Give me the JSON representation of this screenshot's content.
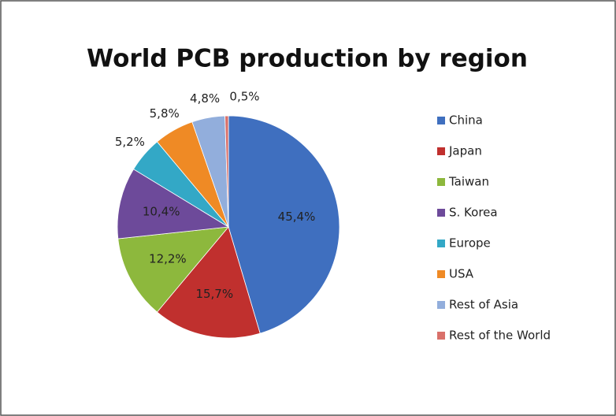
{
  "chart_data": {
    "type": "pie",
    "title": "World PCB production by region",
    "categories": [
      "China",
      "Japan",
      "Taiwan",
      "S. Korea",
      "Europe",
      "USA",
      "Rest of Asia",
      "Rest of the World"
    ],
    "values": [
      45.4,
      15.7,
      12.2,
      10.4,
      5.2,
      5.8,
      4.8,
      0.5
    ],
    "value_labels": [
      "45,4%",
      "15,7%",
      "12,2%",
      "10,4%",
      "5,2%",
      "5,8%",
      "4,8%",
      "0,5%"
    ],
    "colors": [
      "#3f6fbf",
      "#c0302e",
      "#8db83d",
      "#6d4a9a",
      "#33a8c6",
      "#ef8a25",
      "#92aedc",
      "#d9706a"
    ],
    "legend": "right"
  }
}
